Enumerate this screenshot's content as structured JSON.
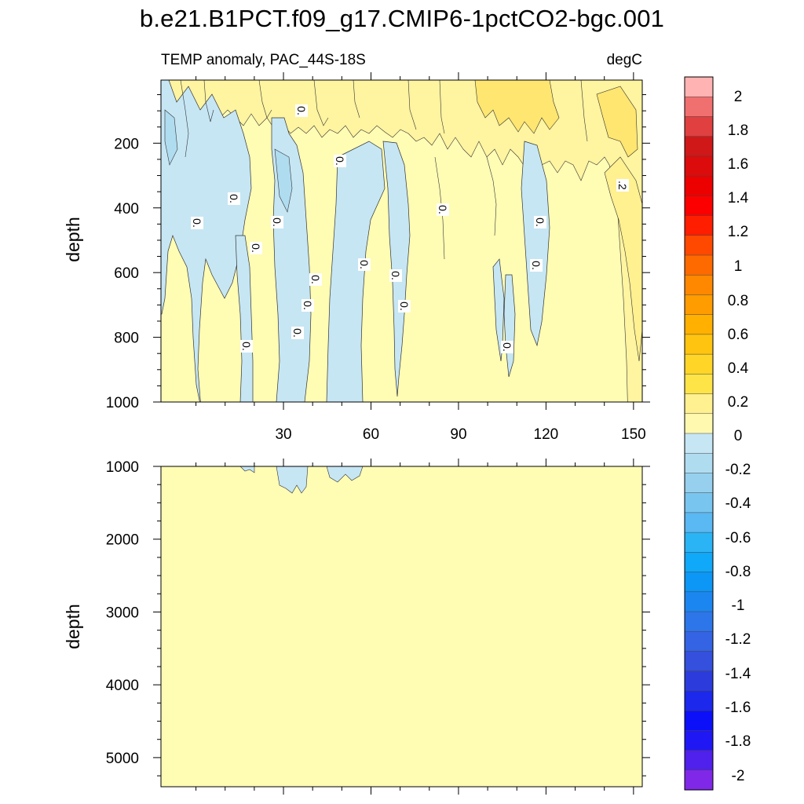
{
  "title": "b.e21.B1PCT.f09_g17.CMIP6-1pctCO2-bgc.001",
  "chart_data": [
    {
      "type": "contour",
      "panel": "upper",
      "subtitle_left": "TEMP anomaly, PAC_44S-18S",
      "subtitle_right": "degC",
      "xlabel": "",
      "ylabel": "depth",
      "xlim": [
        -12,
        153
      ],
      "ylim": [
        1000,
        5
      ],
      "x_ticks": [
        30,
        60,
        90,
        120,
        150
      ],
      "y_ticks": [
        200,
        400,
        600,
        800,
        1000
      ],
      "background_level": "0 to 0.1",
      "negative_regions": [
        {
          "x": [
            0,
            27
          ],
          "depth": [
            5,
            400
          ],
          "level": "-0.1 to 0"
        },
        {
          "x": [
            10,
            15
          ],
          "depth": [
            200,
            520
          ],
          "level": "-0.1 to 0"
        },
        {
          "x": [
            23,
            30
          ],
          "depth": [
            5,
            1000
          ],
          "level": "-0.1 to 0"
        },
        {
          "x": [
            36,
            50
          ],
          "depth": [
            160,
            1000
          ],
          "level": "-0.1 to 0"
        },
        {
          "x": [
            52,
            63
          ],
          "depth": [
            200,
            1000
          ],
          "level": "-0.1 to 0"
        },
        {
          "x": [
            70,
            77
          ],
          "depth": [
            190,
            1000
          ],
          "level": "-0.1 to 0"
        },
        {
          "x": [
            106,
            109
          ],
          "depth": [
            560,
            860
          ],
          "level": "-0.1 to 0"
        },
        {
          "x": [
            114,
            122
          ],
          "depth": [
            180,
            760
          ],
          "level": "-0.1 to 0"
        }
      ],
      "positive_regions": [
        {
          "x": [
            20,
            150
          ],
          "depth": [
            5,
            200
          ],
          "level": "0.1 to 0.2"
        },
        {
          "x": [
            100,
            130
          ],
          "depth": [
            5,
            140
          ],
          "level": "0.2 to 0.3"
        },
        {
          "x": [
            140,
            150
          ],
          "depth": [
            200,
            780
          ],
          "level": "0.1 to 0.2"
        }
      ],
      "contour_labels": [
        {
          "text": "0.",
          "x": 43,
          "depth": 100
        },
        {
          "text": "0.",
          "x": 55,
          "depth": 260
        },
        {
          "text": "0.",
          "x": 11,
          "depth": 450
        },
        {
          "text": "0.",
          "x": 22,
          "depth": 380
        },
        {
          "text": "0.",
          "x": 36,
          "depth": 450
        },
        {
          "text": "0.",
          "x": 29,
          "depth": 530
        },
        {
          "text": "0.",
          "x": 88,
          "depth": 410
        },
        {
          "text": "0.",
          "x": 118,
          "depth": 450
        },
        {
          "text": "0.",
          "x": 63,
          "depth": 580
        },
        {
          "text": "0.",
          "x": 73,
          "depth": 600
        },
        {
          "text": "0.",
          "x": 117,
          "depth": 580
        },
        {
          "text": "0.",
          "x": 48,
          "depth": 620
        },
        {
          "text": "0.",
          "x": 46,
          "depth": 700
        },
        {
          "text": "0.",
          "x": 75,
          "depth": 700
        },
        {
          "text": "0.",
          "x": 42,
          "depth": 800
        },
        {
          "text": "0.",
          "x": 27,
          "depth": 830
        },
        {
          "text": "0.",
          "x": 108,
          "depth": 830
        },
        {
          "text": ".2",
          "x": 144,
          "depth": 330
        }
      ]
    },
    {
      "type": "contour",
      "panel": "lower",
      "xlabel": "",
      "ylabel": "depth",
      "xlim": [
        -12,
        153
      ],
      "ylim": [
        5400,
        1000
      ],
      "x_ticks": [
        30,
        60,
        90,
        120,
        150
      ],
      "y_ticks": [
        1000,
        2000,
        3000,
        4000,
        5000
      ],
      "background_level": "0 to 0.1",
      "negative_regions": [
        {
          "x": [
            25,
            30
          ],
          "depth": [
            1000,
            1080
          ],
          "level": "-0.1 to 0"
        },
        {
          "x": [
            37,
            50
          ],
          "depth": [
            1000,
            1370
          ],
          "level": "-0.1 to 0"
        },
        {
          "x": [
            54,
            63
          ],
          "depth": [
            1000,
            1220
          ],
          "level": "-0.1 to 0"
        }
      ]
    }
  ],
  "colorbar": {
    "labels": [
      "2",
      "1.8",
      "1.6",
      "1.4",
      "1.2",
      "1",
      "0.8",
      "0.6",
      "0.4",
      "0.2",
      "0",
      "-0.2",
      "-0.4",
      "-0.6",
      "-0.8",
      "-1",
      "-1.2",
      "-1.4",
      "-1.6",
      "-1.8",
      "-2"
    ],
    "colors": [
      "#ffb3b3",
      "#f07070",
      "#e04040",
      "#d01818",
      "#dc0c0c",
      "#ec0000",
      "#fc0000",
      "#ff1e00",
      "#ff4800",
      "#ff6a00",
      "#ff8800",
      "#ff9c00",
      "#ffb000",
      "#ffc410",
      "#ffd628",
      "#ffe448",
      "#fff090",
      "#fff9b0",
      "#c6e6f4",
      "#b0dcf0",
      "#96d0ee",
      "#78c6f0",
      "#5ab8f2",
      "#2ab4f6",
      "#10a8f8",
      "#0c96f6",
      "#1c86f0",
      "#2c76ea",
      "#3464e4",
      "#3450dc",
      "#2c3cdc",
      "#1c28ec",
      "#0c10f8",
      "#2018f4",
      "#5020ec",
      "#8028e8"
    ]
  }
}
